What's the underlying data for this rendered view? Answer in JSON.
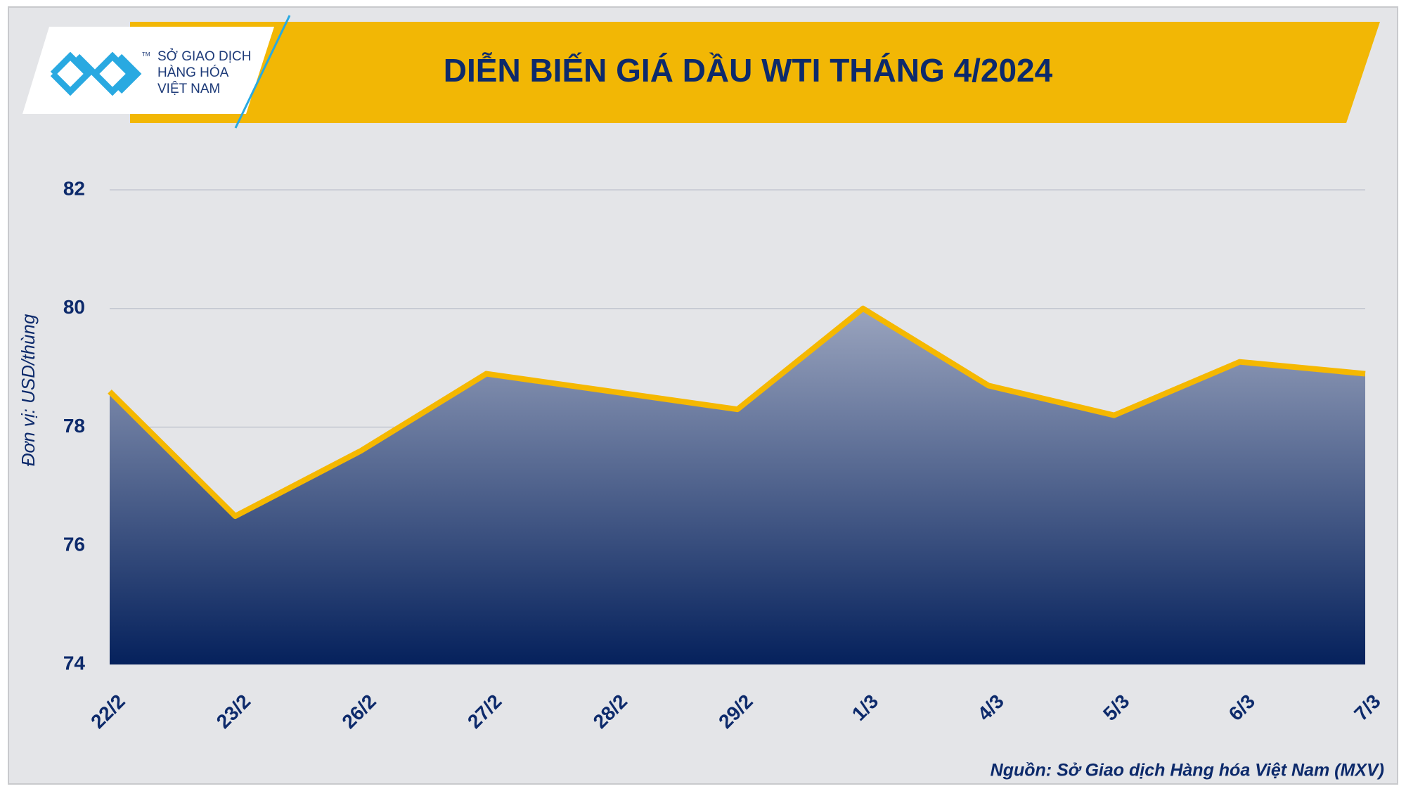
{
  "chart_data": {
    "type": "area",
    "title": "DIỄN BIẾN GIÁ DẦU WTI THÁNG 4/2024",
    "logo": {
      "lines": [
        "SỞ GIAO DỊCH",
        "HÀNG HÓA",
        "VIỆT NAM"
      ],
      "mark": "TM"
    },
    "y_label": "Đơn vị: USD/thùng",
    "source": "Nguồn: Sở Giao dịch Hàng hóa Việt Nam (MXV)",
    "categories": [
      "22/2",
      "23/2",
      "26/2",
      "27/2",
      "28/2",
      "29/2",
      "1/3",
      "4/3",
      "5/3",
      "6/3",
      "7/3"
    ],
    "values": [
      78.6,
      76.5,
      77.6,
      78.9,
      78.6,
      78.3,
      80.0,
      78.7,
      78.2,
      79.1,
      78.9
    ],
    "color": "#f5b800",
    "fill_top": "#9aa4be",
    "fill_bottom": "#05215c",
    "ylim": [
      74,
      82
    ],
    "yticks": [
      74,
      76,
      78,
      80,
      82
    ],
    "grid": true
  }
}
